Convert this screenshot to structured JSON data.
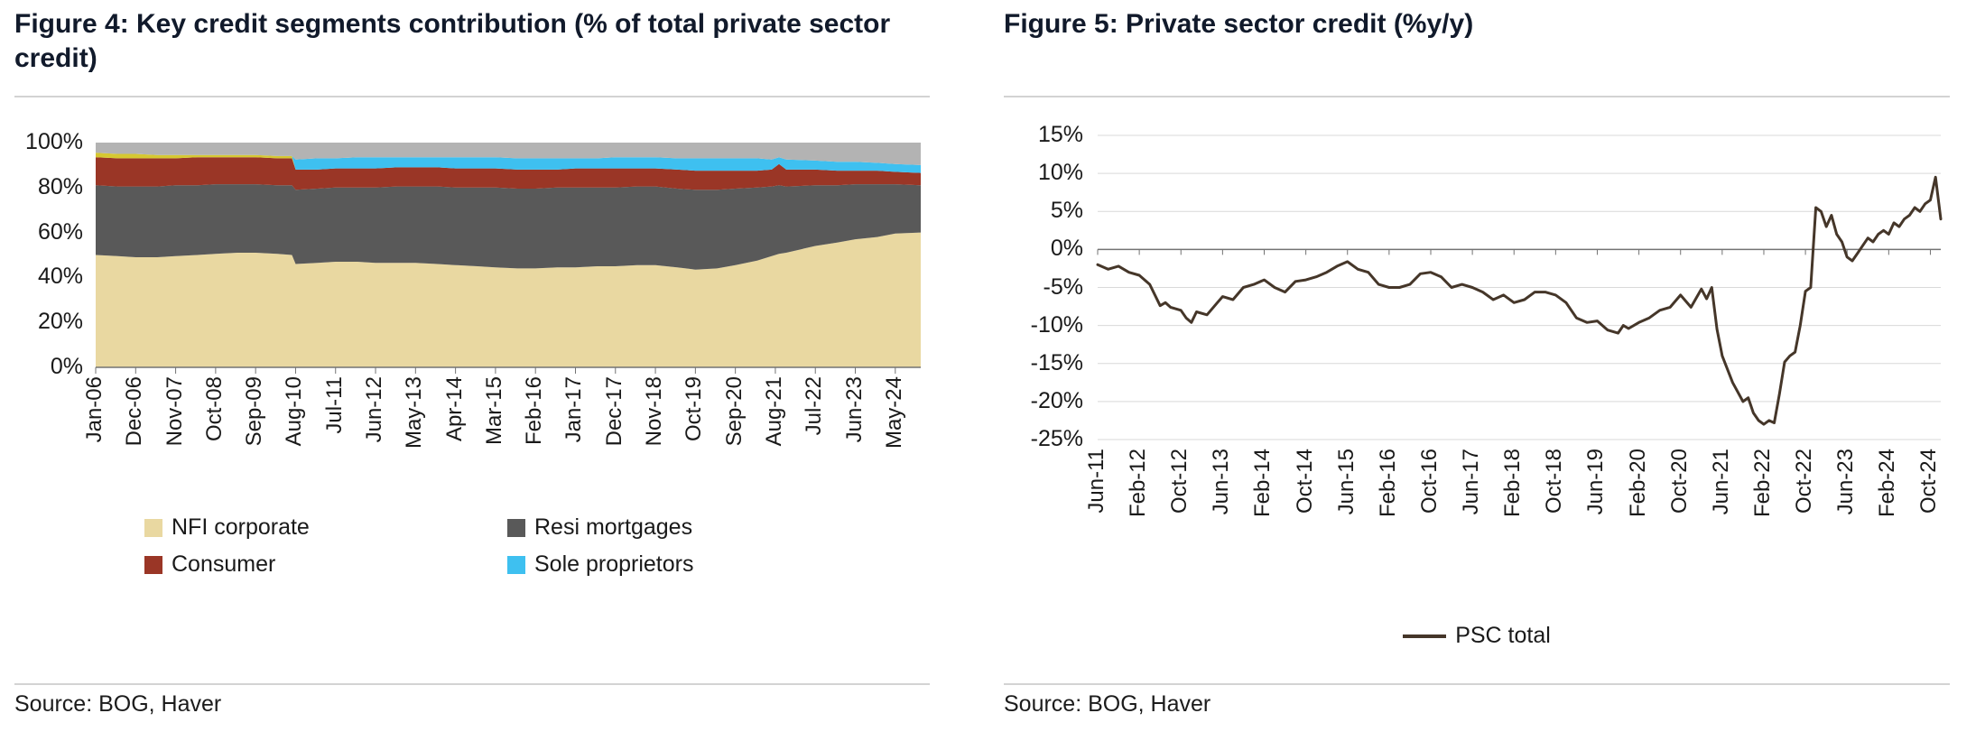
{
  "figure4": {
    "title": "Figure 4: Key credit segments contribution (% of total private sector credit)",
    "source": "Source: BOG, Haver",
    "legend": [
      {
        "label": "NFI corporate",
        "color": "#e9d8a1"
      },
      {
        "label": "Resi mortgages",
        "color": "#595959"
      },
      {
        "label": "Consumer",
        "color": "#9a3626"
      },
      {
        "label": "Sole proprietors",
        "color": "#3ec0f0"
      }
    ],
    "chart_data": {
      "type": "area",
      "title": "Key credit segments contribution (% of total private sector credit)",
      "stacked_percent": true,
      "ylim": [
        0,
        100
      ],
      "yticks": [
        {
          "label": "100%",
          "v": 100
        },
        {
          "label": "80%",
          "v": 80
        },
        {
          "label": "60%",
          "v": 60
        },
        {
          "label": "40%",
          "v": 40
        },
        {
          "label": "20%",
          "v": 20
        },
        {
          "label": "0%",
          "v": 0
        }
      ],
      "xticks": [
        {
          "label": "Jan-06",
          "t": 0
        },
        {
          "label": "Dec-06",
          "t": 11
        },
        {
          "label": "Nov-07",
          "t": 22
        },
        {
          "label": "Oct-08",
          "t": 33
        },
        {
          "label": "Sep-09",
          "t": 44
        },
        {
          "label": "Aug-10",
          "t": 55
        },
        {
          "label": "Jul-11",
          "t": 66
        },
        {
          "label": "Jun-12",
          "t": 77
        },
        {
          "label": "May-13",
          "t": 88
        },
        {
          "label": "Apr-14",
          "t": 99
        },
        {
          "label": "Mar-15",
          "t": 110
        },
        {
          "label": "Feb-16",
          "t": 121
        },
        {
          "label": "Jan-17",
          "t": 132
        },
        {
          "label": "Dec-17",
          "t": 143
        },
        {
          "label": "Nov-18",
          "t": 154
        },
        {
          "label": "Oct-19",
          "t": 165
        },
        {
          "label": "Sep-20",
          "t": 176
        },
        {
          "label": "Aug-21",
          "t": 187
        },
        {
          "label": "Jul-22",
          "t": 198
        },
        {
          "label": "Jun-23",
          "t": 209
        },
        {
          "label": "May-24",
          "t": 220
        }
      ],
      "tmax": 227,
      "bands": [
        {
          "name": "NFI corporate",
          "color": "#e9d8a1"
        },
        {
          "name": "Resi mortgages",
          "color": "#595959"
        },
        {
          "name": "Consumer",
          "color": "#9a3626"
        },
        {
          "name": "Other (unlabeled)",
          "color": "#d6c832"
        },
        {
          "name": "Sole proprietors",
          "color": "#3ec0f0"
        },
        {
          "name": "Remainder",
          "color": "#b3b3b3"
        }
      ],
      "points_note": "c = cumulative % tops of bands 1-5; band 6 fills to 100",
      "points": [
        {
          "t": 0,
          "c": [
            50,
            81,
            93.5,
            95.5,
            95.5
          ]
        },
        {
          "t": 6,
          "c": [
            49.5,
            80.5,
            93,
            95,
            95
          ]
        },
        {
          "t": 11,
          "c": [
            49,
            80.5,
            93,
            95,
            95
          ]
        },
        {
          "t": 17,
          "c": [
            49,
            80.5,
            93,
            94.5,
            94.5
          ]
        },
        {
          "t": 22,
          "c": [
            49.5,
            81,
            93,
            94.5,
            94.5
          ]
        },
        {
          "t": 28,
          "c": [
            50,
            81,
            93.5,
            94.5,
            94.5
          ]
        },
        {
          "t": 33,
          "c": [
            50.5,
            81.5,
            93.5,
            94.5,
            94.5
          ]
        },
        {
          "t": 39,
          "c": [
            51,
            81.5,
            93.5,
            94.5,
            94.5
          ]
        },
        {
          "t": 44,
          "c": [
            51,
            81.5,
            93.5,
            94.5,
            94.5
          ]
        },
        {
          "t": 50,
          "c": [
            50.5,
            81,
            93,
            94,
            94
          ]
        },
        {
          "t": 54,
          "c": [
            50,
            81,
            93,
            94,
            94
          ]
        },
        {
          "t": 55,
          "c": [
            46,
            79,
            88,
            88,
            92.5
          ]
        },
        {
          "t": 61,
          "c": [
            46.5,
            79.5,
            88,
            88,
            93
          ]
        },
        {
          "t": 66,
          "c": [
            47,
            80,
            88.5,
            88.5,
            93
          ]
        },
        {
          "t": 72,
          "c": [
            47,
            80,
            88.5,
            88.5,
            93.5
          ]
        },
        {
          "t": 77,
          "c": [
            46.5,
            80,
            88.5,
            88.5,
            93.5
          ]
        },
        {
          "t": 83,
          "c": [
            46.5,
            80.5,
            89,
            89,
            93.5
          ]
        },
        {
          "t": 88,
          "c": [
            46.5,
            80.5,
            89,
            89,
            93.5
          ]
        },
        {
          "t": 94,
          "c": [
            46,
            80.5,
            89,
            89,
            93.5
          ]
        },
        {
          "t": 99,
          "c": [
            45.5,
            80,
            88.5,
            88.5,
            93.5
          ]
        },
        {
          "t": 105,
          "c": [
            45,
            80,
            88.5,
            88.5,
            93.5
          ]
        },
        {
          "t": 110,
          "c": [
            44.5,
            80,
            88.5,
            88.5,
            93.5
          ]
        },
        {
          "t": 116,
          "c": [
            44,
            79.5,
            88,
            88,
            93
          ]
        },
        {
          "t": 121,
          "c": [
            44,
            79.5,
            88,
            88,
            93
          ]
        },
        {
          "t": 127,
          "c": [
            44.5,
            80,
            88,
            88,
            93
          ]
        },
        {
          "t": 132,
          "c": [
            44.5,
            80,
            88.5,
            88.5,
            93
          ]
        },
        {
          "t": 138,
          "c": [
            45,
            80,
            88.5,
            88.5,
            93
          ]
        },
        {
          "t": 143,
          "c": [
            45,
            80,
            88.5,
            88.5,
            93.5
          ]
        },
        {
          "t": 149,
          "c": [
            45.5,
            80.5,
            88.5,
            88.5,
            93.5
          ]
        },
        {
          "t": 154,
          "c": [
            45.5,
            80.5,
            88.5,
            88.5,
            93.5
          ]
        },
        {
          "t": 160,
          "c": [
            44.5,
            79.5,
            88,
            88,
            93
          ]
        },
        {
          "t": 165,
          "c": [
            43.5,
            79,
            87.5,
            87.5,
            93
          ]
        },
        {
          "t": 171,
          "c": [
            44,
            79,
            87.5,
            87.5,
            93
          ]
        },
        {
          "t": 176,
          "c": [
            45.5,
            79.5,
            87.5,
            87.5,
            93
          ]
        },
        {
          "t": 182,
          "c": [
            47.5,
            80,
            87.5,
            87.5,
            93
          ]
        },
        {
          "t": 186,
          "c": [
            49.5,
            80.5,
            88,
            88,
            92.5
          ]
        },
        {
          "t": 188,
          "c": [
            50.5,
            81,
            90.5,
            90.5,
            93.5
          ]
        },
        {
          "t": 190,
          "c": [
            51,
            80.5,
            88,
            88,
            92.5
          ]
        },
        {
          "t": 198,
          "c": [
            54,
            81,
            88,
            88,
            92
          ]
        },
        {
          "t": 204,
          "c": [
            55.5,
            81,
            87.5,
            87.5,
            91.5
          ]
        },
        {
          "t": 209,
          "c": [
            57,
            81.5,
            87.5,
            87.5,
            91.5
          ]
        },
        {
          "t": 215,
          "c": [
            58,
            81.5,
            87.5,
            87.5,
            91
          ]
        },
        {
          "t": 220,
          "c": [
            59.5,
            81.5,
            87,
            87,
            90.5
          ]
        },
        {
          "t": 227,
          "c": [
            60,
            81,
            86.5,
            86.5,
            90
          ]
        }
      ]
    }
  },
  "figure5": {
    "title": "Figure 5: Private sector credit (%y/y)",
    "source": "Source: BOG, Haver",
    "legend_label": "PSC total",
    "line_color": "#453629",
    "chart_data": {
      "type": "line",
      "title": "Private sector credit (%y/y)",
      "series_name": "PSC total",
      "ylim": [
        -25,
        15
      ],
      "yticks": [
        {
          "label": "15%",
          "v": 15
        },
        {
          "label": "10%",
          "v": 10
        },
        {
          "label": "5%",
          "v": 5
        },
        {
          "label": "0%",
          "v": 0
        },
        {
          "label": "-5%",
          "v": -5
        },
        {
          "label": "-10%",
          "v": -10
        },
        {
          "label": "-15%",
          "v": -15
        },
        {
          "label": "-20%",
          "v": -20
        },
        {
          "label": "-25%",
          "v": -25
        }
      ],
      "xticks": [
        {
          "label": "Jun-11",
          "t": 0
        },
        {
          "label": "Feb-12",
          "t": 8
        },
        {
          "label": "Oct-12",
          "t": 16
        },
        {
          "label": "Jun-13",
          "t": 24
        },
        {
          "label": "Feb-14",
          "t": 32
        },
        {
          "label": "Oct-14",
          "t": 40
        },
        {
          "label": "Jun-15",
          "t": 48
        },
        {
          "label": "Feb-16",
          "t": 56
        },
        {
          "label": "Oct-16",
          "t": 64
        },
        {
          "label": "Jun-17",
          "t": 72
        },
        {
          "label": "Feb-18",
          "t": 80
        },
        {
          "label": "Oct-18",
          "t": 88
        },
        {
          "label": "Jun-19",
          "t": 96
        },
        {
          "label": "Feb-20",
          "t": 104
        },
        {
          "label": "Oct-20",
          "t": 112
        },
        {
          "label": "Jun-21",
          "t": 120
        },
        {
          "label": "Feb-22",
          "t": 128
        },
        {
          "label": "Oct-22",
          "t": 136
        },
        {
          "label": "Jun-23",
          "t": 144
        },
        {
          "label": "Feb-24",
          "t": 152
        },
        {
          "label": "Oct-24",
          "t": 160
        }
      ],
      "tmax": 162,
      "points": [
        [
          0,
          -2
        ],
        [
          2,
          -2.6
        ],
        [
          4,
          -2.2
        ],
        [
          6,
          -3
        ],
        [
          8,
          -3.4
        ],
        [
          10,
          -4.6
        ],
        [
          12,
          -7.4
        ],
        [
          13,
          -7
        ],
        [
          14,
          -7.6
        ],
        [
          16,
          -8
        ],
        [
          17,
          -9
        ],
        [
          18,
          -9.6
        ],
        [
          19,
          -8.2
        ],
        [
          21,
          -8.6
        ],
        [
          23,
          -7
        ],
        [
          24,
          -6.2
        ],
        [
          26,
          -6.6
        ],
        [
          28,
          -5
        ],
        [
          30,
          -4.6
        ],
        [
          32,
          -4
        ],
        [
          34,
          -5
        ],
        [
          36,
          -5.6
        ],
        [
          38,
          -4.2
        ],
        [
          40,
          -4
        ],
        [
          42,
          -3.6
        ],
        [
          44,
          -3
        ],
        [
          46,
          -2.2
        ],
        [
          48,
          -1.6
        ],
        [
          50,
          -2.6
        ],
        [
          52,
          -3
        ],
        [
          54,
          -4.6
        ],
        [
          56,
          -5
        ],
        [
          58,
          -5
        ],
        [
          60,
          -4.6
        ],
        [
          62,
          -3.2
        ],
        [
          64,
          -3
        ],
        [
          66,
          -3.6
        ],
        [
          68,
          -5
        ],
        [
          70,
          -4.6
        ],
        [
          72,
          -5
        ],
        [
          74,
          -5.6
        ],
        [
          76,
          -6.6
        ],
        [
          78,
          -6
        ],
        [
          80,
          -7
        ],
        [
          82,
          -6.6
        ],
        [
          84,
          -5.6
        ],
        [
          86,
          -5.6
        ],
        [
          88,
          -6
        ],
        [
          90,
          -7
        ],
        [
          92,
          -9
        ],
        [
          94,
          -9.6
        ],
        [
          96,
          -9.4
        ],
        [
          98,
          -10.6
        ],
        [
          100,
          -11
        ],
        [
          101,
          -10
        ],
        [
          102,
          -10.4
        ],
        [
          104,
          -9.6
        ],
        [
          106,
          -9
        ],
        [
          108,
          -8
        ],
        [
          110,
          -7.6
        ],
        [
          112,
          -6
        ],
        [
          114,
          -7.6
        ],
        [
          116,
          -5.2
        ],
        [
          117,
          -6.5
        ],
        [
          118,
          -5
        ],
        [
          119,
          -10.5
        ],
        [
          120,
          -14
        ],
        [
          122,
          -17.5
        ],
        [
          124,
          -20
        ],
        [
          125,
          -19.5
        ],
        [
          126,
          -21.5
        ],
        [
          127,
          -22.5
        ],
        [
          128,
          -23
        ],
        [
          129,
          -22.5
        ],
        [
          130,
          -22.8
        ],
        [
          131,
          -19
        ],
        [
          132,
          -14.8
        ],
        [
          133,
          -14
        ],
        [
          134,
          -13.5
        ],
        [
          135,
          -10
        ],
        [
          136,
          -5.5
        ],
        [
          137,
          -5
        ],
        [
          138,
          5.5
        ],
        [
          139,
          5
        ],
        [
          140,
          3
        ],
        [
          141,
          4.5
        ],
        [
          142,
          2
        ],
        [
          143,
          1
        ],
        [
          144,
          -1
        ],
        [
          145,
          -1.5
        ],
        [
          146,
          -0.5
        ],
        [
          147,
          0.5
        ],
        [
          148,
          1.5
        ],
        [
          149,
          1
        ],
        [
          150,
          2
        ],
        [
          151,
          2.5
        ],
        [
          152,
          2
        ],
        [
          153,
          3.5
        ],
        [
          154,
          3
        ],
        [
          155,
          4
        ],
        [
          156,
          4.5
        ],
        [
          157,
          5.5
        ],
        [
          158,
          5
        ],
        [
          159,
          6
        ],
        [
          160,
          6.5
        ],
        [
          161,
          9.5
        ],
        [
          162,
          4
        ]
      ]
    }
  },
  "colors": {
    "title": "#111a2b",
    "rule": "#d3d3d3",
    "grid": "#d9d9d9",
    "axis": "#737373",
    "label_text": "#1a1a1a"
  }
}
